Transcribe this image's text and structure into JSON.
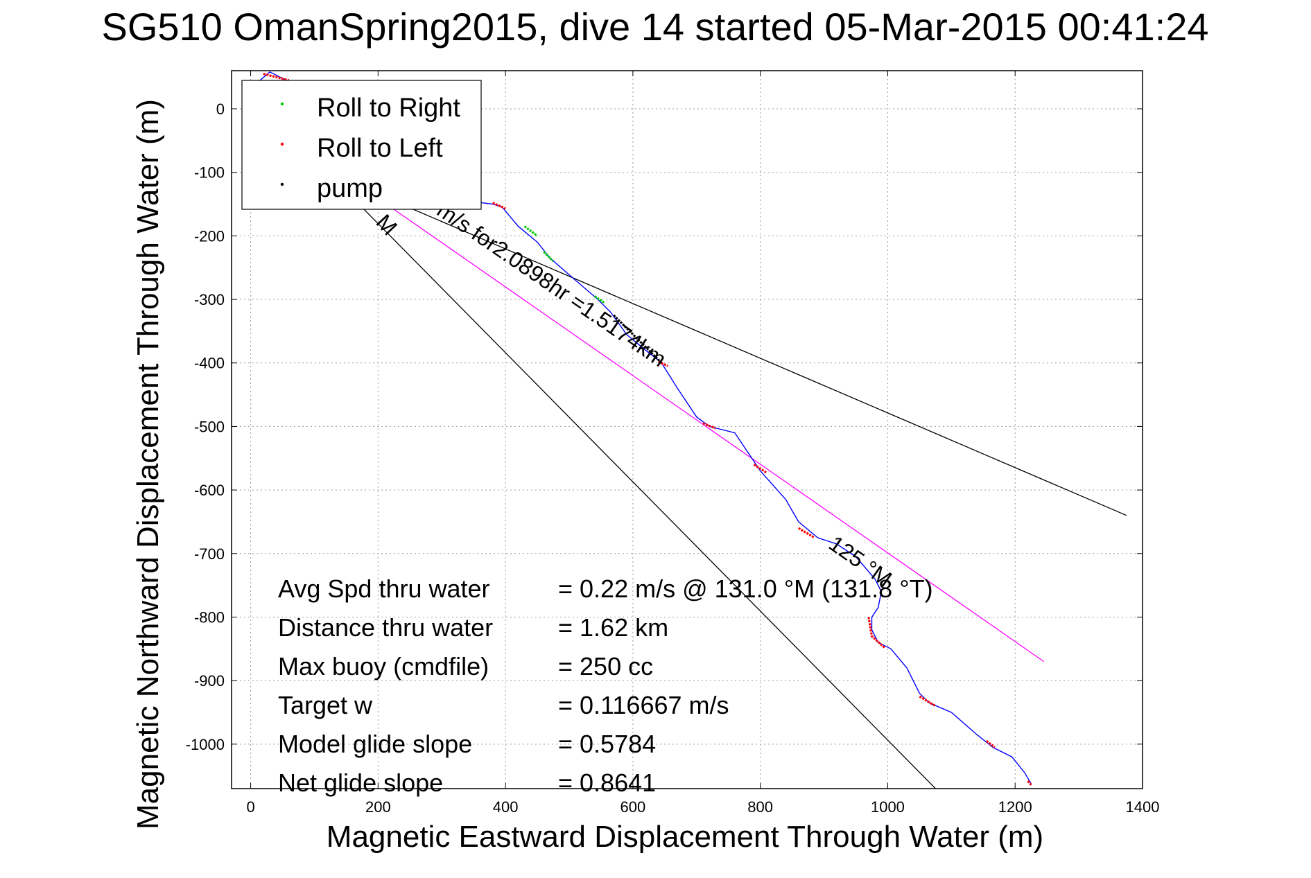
{
  "chart_data": {
    "type": "line",
    "title": "SG510 OmanSpring2015, dive 14 started 05-Mar-2015 00:41:24",
    "xlabel": "Magnetic Eastward Displacement Through Water (m)",
    "ylabel": "Magnetic Northward Displacement Through Water (m)",
    "xlim": [
      -30,
      1400
    ],
    "ylim": [
      -1070,
      60
    ],
    "grid": true,
    "xticks": [
      0,
      200,
      400,
      600,
      800,
      1000,
      1200,
      1400
    ],
    "yticks": [
      0,
      -100,
      -200,
      -300,
      -400,
      -500,
      -600,
      -700,
      -800,
      -900,
      -1000
    ],
    "xtick_labels": [
      "0",
      "200",
      "400",
      "600",
      "800",
      "1000",
      "1200",
      "1400"
    ],
    "ytick_labels": [
      "0",
      "-100",
      "-200",
      "-300",
      "-400",
      "-500",
      "-600",
      "-700",
      "-800",
      "-900",
      "-1000"
    ],
    "legend": {
      "placement": "top-left",
      "entries": [
        {
          "label": "Roll to Right",
          "color": "#00cc00"
        },
        {
          "label": "Roll to Left",
          "color": "#ff0000"
        },
        {
          "label": "pump",
          "color": "#000000"
        }
      ]
    },
    "track": {
      "color": "#0000ff",
      "points": [
        [
          0,
          10
        ],
        [
          15,
          45
        ],
        [
          30,
          58
        ],
        [
          50,
          48
        ],
        [
          70,
          38
        ],
        [
          120,
          -15
        ],
        [
          200,
          -100
        ],
        [
          300,
          -140
        ],
        [
          380,
          -150
        ],
        [
          395,
          -155
        ],
        [
          420,
          -185
        ],
        [
          450,
          -210
        ],
        [
          470,
          -235
        ],
        [
          510,
          -270
        ],
        [
          545,
          -300
        ],
        [
          565,
          -320
        ],
        [
          590,
          -355
        ],
        [
          620,
          -380
        ],
        [
          645,
          -400
        ],
        [
          670,
          -440
        ],
        [
          700,
          -485
        ],
        [
          720,
          -500
        ],
        [
          760,
          -510
        ],
        [
          780,
          -540
        ],
        [
          800,
          -570
        ],
        [
          840,
          -615
        ],
        [
          860,
          -650
        ],
        [
          890,
          -675
        ],
        [
          920,
          -685
        ],
        [
          950,
          -705
        ],
        [
          980,
          -740
        ],
        [
          990,
          -760
        ],
        [
          985,
          -785
        ],
        [
          975,
          -800
        ],
        [
          975,
          -820
        ],
        [
          985,
          -840
        ],
        [
          1005,
          -850
        ],
        [
          1030,
          -880
        ],
        [
          1050,
          -920
        ],
        [
          1065,
          -935
        ],
        [
          1100,
          -950
        ],
        [
          1140,
          -985
        ],
        [
          1165,
          -1005
        ],
        [
          1195,
          -1020
        ],
        [
          1215,
          -1045
        ],
        [
          1225,
          -1062
        ]
      ]
    },
    "roll_right_segments": [
      [
        [
          430,
          -185
        ],
        [
          450,
          -200
        ]
      ],
      [
        [
          460,
          -225
        ],
        [
          475,
          -240
        ]
      ],
      [
        [
          540,
          -295
        ],
        [
          555,
          -305
        ]
      ]
    ],
    "roll_left_segments": [
      [
        [
          20,
          55
        ],
        [
          60,
          45
        ]
      ],
      [
        [
          380,
          -148
        ],
        [
          400,
          -157
        ]
      ],
      [
        [
          640,
          -398
        ],
        [
          655,
          -405
        ]
      ],
      [
        [
          710,
          -495
        ],
        [
          730,
          -503
        ]
      ],
      [
        [
          790,
          -560
        ],
        [
          810,
          -573
        ]
      ],
      [
        [
          860,
          -660
        ],
        [
          885,
          -675
        ]
      ],
      [
        [
          970,
          -800
        ],
        [
          975,
          -830
        ],
        [
          995,
          -848
        ]
      ],
      [
        [
          1050,
          -925
        ],
        [
          1075,
          -940
        ]
      ],
      [
        [
          1155,
          -995
        ],
        [
          1168,
          -1005
        ]
      ],
      [
        [
          1220,
          -1058
        ],
        [
          1226,
          -1065
        ]
      ]
    ],
    "pump_segments": [
      [
        [
          570,
          -325
        ],
        [
          600,
          -355
        ],
        [
          645,
          -400
        ]
      ]
    ],
    "reference_lines": [
      {
        "color": "#000000",
        "points": [
          [
            120,
            -100
          ],
          [
            1375,
            -640
          ]
        ]
      },
      {
        "color": "#000000",
        "points": [
          [
            160,
            -140
          ],
          [
            1075,
            -1070
          ]
        ]
      },
      {
        "color": "#ff00ff",
        "points": [
          [
            170,
            -120
          ],
          [
            1245,
            -870
          ]
        ]
      }
    ],
    "track_labels": [
      {
        "text": "M",
        "x": 195,
        "y": -180,
        "angle": 47
      },
      {
        "text": "m/s for2.0898hr =1.5174km",
        "x": 290,
        "y": -165,
        "angle": 34.5
      },
      {
        "text": "125 °M",
        "x": 905,
        "y": -690,
        "angle": 35
      }
    ],
    "stats": [
      {
        "label": "Avg Spd thru water",
        "value": "=  0.22 m/s @ 131.0 °M (131.8 °T)"
      },
      {
        "label": "Distance thru water",
        "value": "=  1.62 km"
      },
      {
        "label": "Max buoy (cmdfile)",
        "value": "= 250 cc"
      },
      {
        "label": "Target w",
        "value": "= 0.116667 m/s"
      },
      {
        "label": "Model glide slope",
        "value": "= 0.5784"
      },
      {
        "label": "Net glide slope",
        "value": "= 0.8641"
      }
    ]
  }
}
